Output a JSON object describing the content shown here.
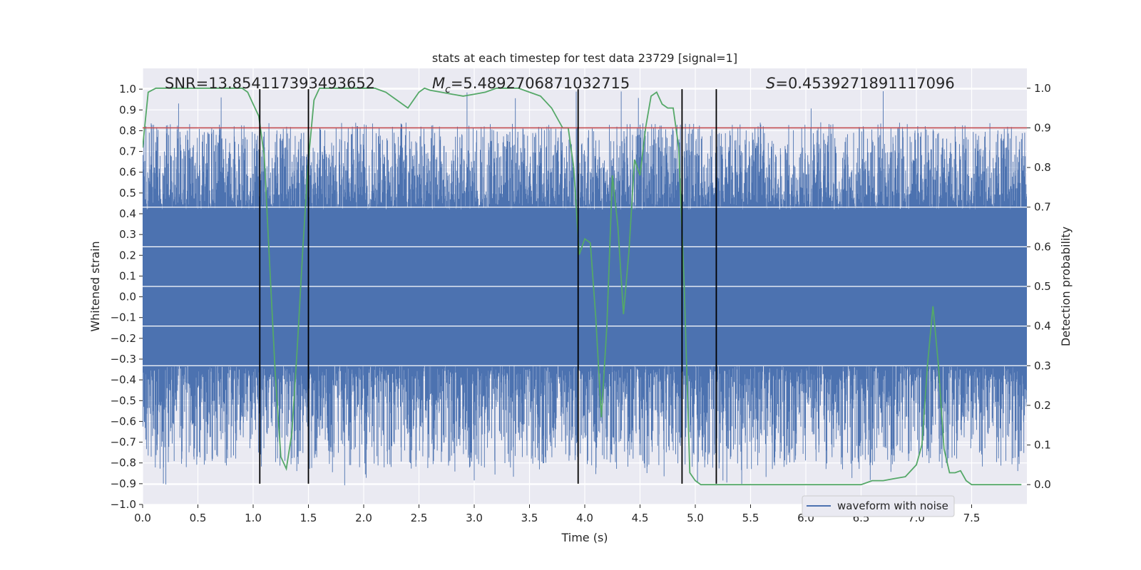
{
  "chart_data": {
    "type": "line",
    "title": "stats at each timestep for test data 23729 [signal=1]",
    "xlabel": "Time (s)",
    "ylabel": "Whitened strain",
    "ylabel_right": "Detection probability",
    "xlim": [
      0.0,
      8.0
    ],
    "ylim": [
      -1.0,
      1.1
    ],
    "ylim_right": [
      -0.05,
      1.05
    ],
    "x_ticks": [
      "0.0",
      "0.5",
      "1.0",
      "1.5",
      "2.0",
      "2.5",
      "3.0",
      "3.5",
      "4.0",
      "4.5",
      "5.0",
      "5.5",
      "6.0",
      "6.5",
      "7.0",
      "7.5"
    ],
    "y_ticks": [
      "−1.0",
      "−0.9",
      "−0.8",
      "−0.7",
      "−0.6",
      "−0.5",
      "−0.4",
      "−0.3",
      "−0.2",
      "−0.1",
      "0.0",
      "0.1",
      "0.2",
      "0.3",
      "0.4",
      "0.5",
      "0.6",
      "0.7",
      "0.8",
      "0.9",
      "1.0"
    ],
    "y_ticks_right": [
      "0.0",
      "0.1",
      "0.2",
      "0.3",
      "0.4",
      "0.5",
      "0.6",
      "0.7",
      "0.8",
      "0.9",
      "1.0"
    ],
    "annotations": {
      "snr": "SNR=13.854117393493652",
      "mc_symbol": "M",
      "mc_sub": "c",
      "mc_value": "=5.4892706871032715",
      "s_symbol": "S",
      "s_value": "=0.4539271891117096"
    },
    "grid": true,
    "legend": {
      "position": "lower-right",
      "entries": [
        "waveform with noise"
      ]
    },
    "series": [
      {
        "name": "waveform with noise",
        "axis": "left",
        "color": "#4c72b0",
        "kind": "noisy strain",
        "core_band": [
          -0.33,
          0.42
        ],
        "spike_range": [
          -0.91,
          1.0
        ]
      },
      {
        "axis": "right",
        "color": "#55a868",
        "x": [
          0.0,
          0.05,
          0.12,
          0.2,
          0.3,
          0.4,
          0.5,
          0.6,
          0.7,
          0.8,
          0.9,
          0.95,
          1.0,
          1.05,
          1.1,
          1.15,
          1.2,
          1.25,
          1.3,
          1.35,
          1.4,
          1.45,
          1.5,
          1.55,
          1.6,
          1.65,
          1.7,
          1.8,
          1.9,
          2.0,
          2.1,
          2.2,
          2.3,
          2.4,
          2.5,
          2.55,
          2.6,
          2.7,
          2.8,
          2.9,
          3.0,
          3.1,
          3.2,
          3.3,
          3.4,
          3.5,
          3.6,
          3.7,
          3.8,
          3.85,
          3.9,
          3.95,
          4.0,
          4.05,
          4.1,
          4.15,
          4.2,
          4.25,
          4.3,
          4.35,
          4.4,
          4.45,
          4.5,
          4.55,
          4.6,
          4.65,
          4.7,
          4.75,
          4.8,
          4.85,
          4.9,
          4.95,
          5.0,
          5.05,
          5.1,
          5.15,
          5.2,
          5.25,
          5.3,
          5.35,
          5.4,
          5.5,
          5.6,
          5.7,
          5.8,
          5.9,
          6.0,
          6.1,
          6.2,
          6.3,
          6.4,
          6.5,
          6.6,
          6.7,
          6.8,
          6.9,
          7.0,
          7.05,
          7.1,
          7.15,
          7.2,
          7.25,
          7.3,
          7.35,
          7.4,
          7.45,
          7.5,
          7.55,
          7.6,
          7.65,
          7.7,
          7.75,
          7.8,
          7.85,
          7.9,
          7.95
        ],
        "values": [
          0.85,
          0.99,
          1.0,
          1.0,
          1.0,
          1.0,
          1.0,
          1.0,
          1.0,
          1.0,
          1.0,
          0.99,
          0.96,
          0.93,
          0.83,
          0.55,
          0.28,
          0.07,
          0.04,
          0.13,
          0.35,
          0.6,
          0.82,
          0.97,
          1.0,
          1.0,
          1.0,
          1.0,
          1.0,
          1.0,
          1.0,
          0.99,
          0.97,
          0.95,
          0.99,
          1.0,
          0.995,
          0.99,
          0.985,
          0.98,
          0.985,
          0.99,
          1.0,
          1.0,
          1.0,
          0.99,
          0.98,
          0.95,
          0.9,
          0.9,
          0.8,
          0.58,
          0.62,
          0.61,
          0.42,
          0.17,
          0.4,
          0.78,
          0.65,
          0.43,
          0.59,
          0.82,
          0.78,
          0.9,
          0.98,
          0.99,
          0.96,
          0.95,
          0.95,
          0.85,
          0.5,
          0.03,
          0.01,
          0.0,
          0.0,
          0.0,
          0.0,
          0.0,
          0.0,
          0.0,
          0.0,
          0.0,
          0.0,
          0.0,
          0.0,
          0.0,
          0.0,
          0.0,
          0.0,
          0.0,
          0.0,
          0.0,
          0.01,
          0.01,
          0.015,
          0.02,
          0.05,
          0.1,
          0.3,
          0.45,
          0.3,
          0.09,
          0.03,
          0.03,
          0.035,
          0.01,
          0.0,
          0.0,
          0.0,
          0.0,
          0.0,
          0.0,
          0.0,
          0.0,
          0.0,
          0.0
        ]
      }
    ],
    "threshold": {
      "axis": "right",
      "value": 0.9,
      "color": "#c44e52"
    },
    "vertical_lines": {
      "x": [
        1.06,
        1.5,
        3.94,
        4.88,
        5.19
      ],
      "y_range": [
        -0.9,
        1.0
      ],
      "color": "#000000"
    }
  }
}
